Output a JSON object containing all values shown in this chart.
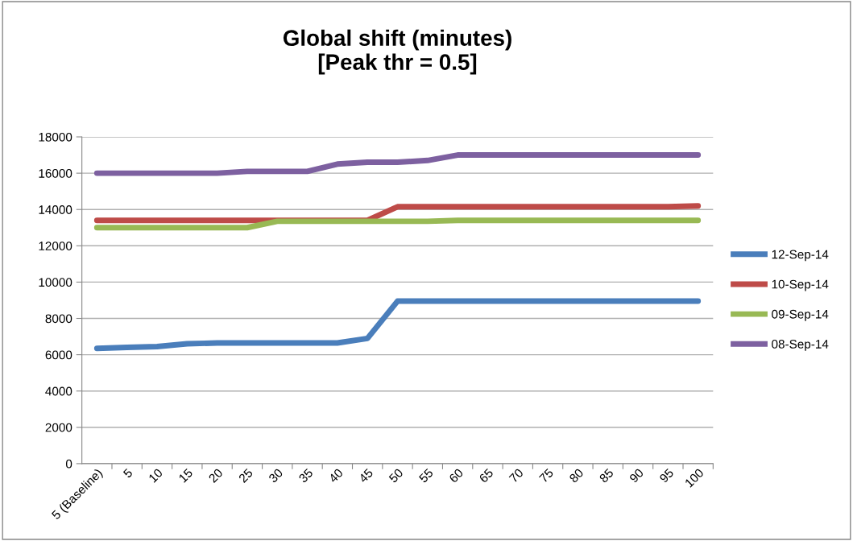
{
  "chart_data": {
    "type": "line",
    "title": "Global shift (minutes)\n[Peak thr = 0.5]",
    "categories": [
      "5 (Baseline)",
      "5",
      "10",
      "15",
      "20",
      "25",
      "30",
      "35",
      "40",
      "45",
      "50",
      "55",
      "60",
      "65",
      "70",
      "75",
      "80",
      "85",
      "90",
      "95",
      "100"
    ],
    "series": [
      {
        "name": "12-Sep-14",
        "color": "#4a7ebb",
        "values": [
          6350,
          6400,
          6450,
          6600,
          6650,
          6650,
          6650,
          6650,
          6650,
          6900,
          8950,
          8950,
          8950,
          8950,
          8950,
          8950,
          8950,
          8950,
          8950,
          8950,
          8950
        ]
      },
      {
        "name": "10-Sep-14",
        "color": "#be4b48",
        "values": [
          13400,
          13400,
          13400,
          13400,
          13400,
          13400,
          13400,
          13400,
          13400,
          13400,
          14150,
          14150,
          14150,
          14150,
          14150,
          14150,
          14150,
          14150,
          14150,
          14150,
          14200
        ]
      },
      {
        "name": "09-Sep-14",
        "color": "#98b954",
        "values": [
          13000,
          13000,
          13000,
          13000,
          13000,
          13000,
          13350,
          13350,
          13350,
          13350,
          13350,
          13350,
          13400,
          13400,
          13400,
          13400,
          13400,
          13400,
          13400,
          13400,
          13400
        ]
      },
      {
        "name": "08-Sep-14",
        "color": "#7d60a0",
        "values": [
          16000,
          16000,
          16000,
          16000,
          16000,
          16100,
          16100,
          16100,
          16500,
          16600,
          16600,
          16700,
          17000,
          17000,
          17000,
          17000,
          17000,
          17000,
          17000,
          17000,
          17000
        ]
      }
    ],
    "ylim": [
      0,
      18000
    ],
    "yticks": [
      0,
      2000,
      4000,
      6000,
      8000,
      10000,
      12000,
      14000,
      16000,
      18000
    ],
    "grid": "y",
    "legend": "right",
    "marker": "none",
    "line_style": "solid"
  }
}
